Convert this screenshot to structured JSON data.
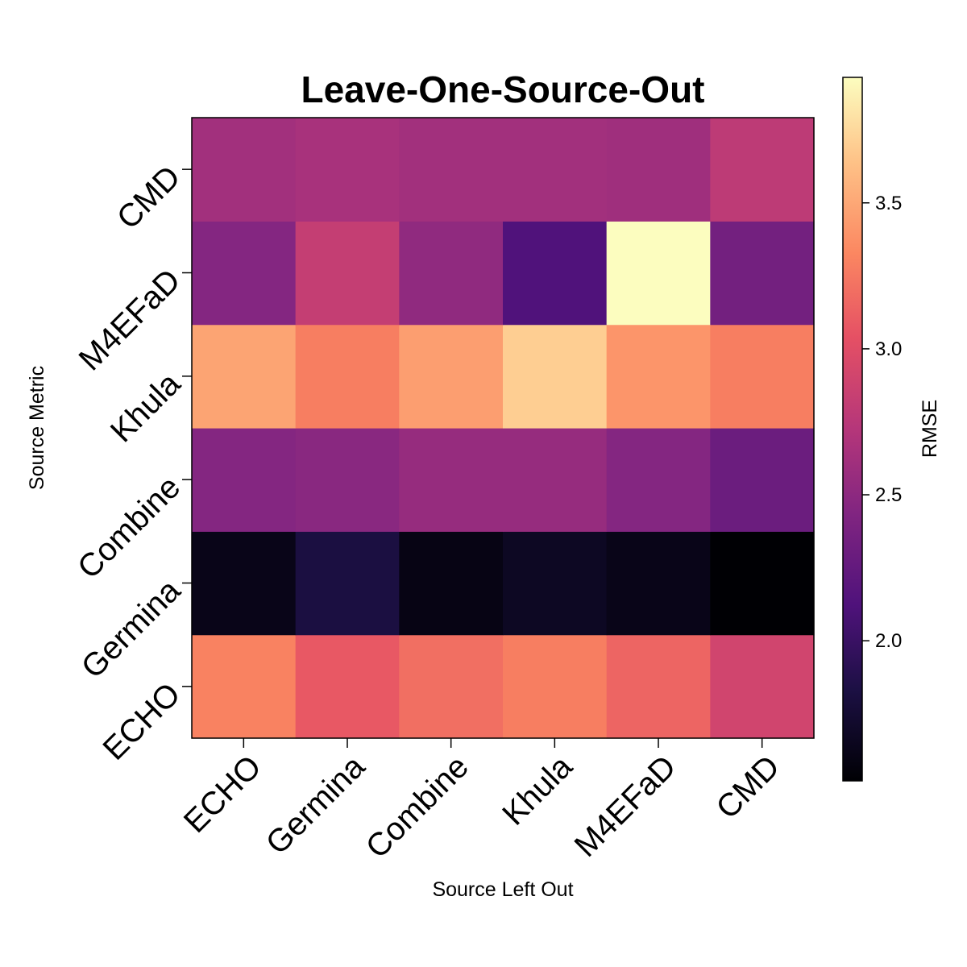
{
  "chart_data": {
    "type": "heatmap",
    "title": "Leave-One-Source-Out",
    "xlabel": "Source Left Out",
    "ylabel": "Source Metric",
    "x_categories": [
      "ECHO",
      "Germina",
      "Combine",
      "Khula",
      "M4EFaD",
      "CMD"
    ],
    "y_categories": [
      "ECHO",
      "Germina",
      "Combine",
      "Khula",
      "M4EFaD",
      "CMD"
    ],
    "values": [
      [
        3.3,
        3.08,
        3.2,
        3.28,
        3.15,
        2.9
      ],
      [
        1.62,
        1.82,
        1.6,
        1.67,
        1.62,
        1.52
      ],
      [
        2.45,
        2.48,
        2.55,
        2.55,
        2.45,
        2.3
      ],
      [
        3.48,
        3.28,
        3.45,
        3.7,
        3.4,
        3.28
      ],
      [
        2.45,
        2.82,
        2.52,
        2.13,
        3.93,
        2.35
      ],
      [
        2.62,
        2.65,
        2.62,
        2.62,
        2.6,
        2.78
      ]
    ],
    "colorbar": {
      "label": "RMSE",
      "min": 1.52,
      "max": 3.93,
      "ticks": [
        2.0,
        2.5,
        3.0,
        3.5
      ],
      "tick_labels": [
        "2.0",
        "2.5",
        "3.0",
        "3.5"
      ],
      "colormap": "magma"
    }
  }
}
